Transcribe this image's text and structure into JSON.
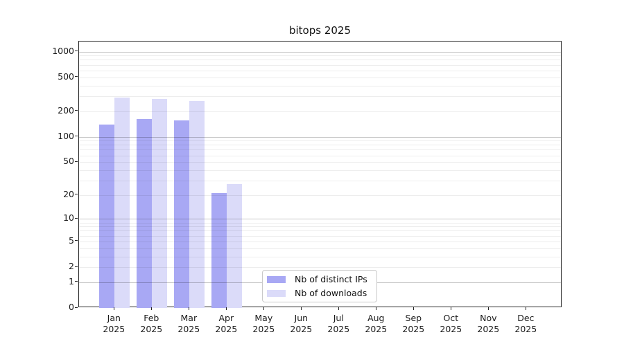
{
  "chart_data": {
    "type": "bar",
    "title": "bitops 2025",
    "categories": [
      "Jan",
      "Feb",
      "Mar",
      "Apr",
      "May",
      "Jun",
      "Jul",
      "Aug",
      "Sep",
      "Oct",
      "Nov",
      "Dec"
    ],
    "x_year_label": "2025",
    "series": [
      {
        "name": "Nb of distinct IPs",
        "key": "distinct-ips",
        "color": "#a8a8f4",
        "values": [
          140,
          160,
          155,
          21,
          null,
          null,
          null,
          null,
          null,
          null,
          null,
          null
        ]
      },
      {
        "name": "Nb of downloads",
        "key": "downloads",
        "color": "#dbdbf9",
        "values": [
          290,
          280,
          265,
          27,
          null,
          null,
          null,
          null,
          null,
          null,
          null,
          null
        ]
      }
    ],
    "yscale": "log1p",
    "ylim": [
      0,
      1000
    ],
    "y_tick_values": [
      0,
      1,
      2,
      5,
      10,
      20,
      50,
      100,
      200,
      500,
      1000
    ],
    "y_tick_labels": [
      "0",
      "1",
      "2",
      "5",
      "10",
      "20",
      "50",
      "100",
      "200",
      "500",
      "1000"
    ],
    "grid": "both",
    "legend_position": "lower-center-left"
  },
  "colors": {
    "grid_major": "#c7c7c7",
    "grid_minor": "#ededed",
    "spine": "#262626",
    "text": "#1a1a1a"
  }
}
